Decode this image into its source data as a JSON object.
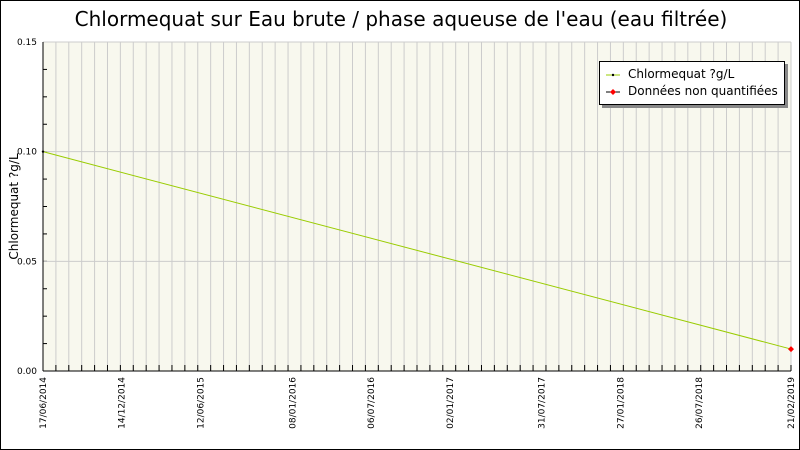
{
  "chart_data": {
    "type": "line",
    "title": "Chlormequat sur Eau brute / phase aqueuse de l'eau (eau filtrée)",
    "ylabel": "Chlormequat ?g/L",
    "xlabel": "",
    "ylim": [
      0,
      0.15
    ],
    "yticks": [
      "0.00",
      "0.05",
      "0.10",
      "0.15"
    ],
    "xticks": [
      "17/06/2014",
      "14/12/2014",
      "12/06/2015",
      "08/01/2016",
      "06/07/2016",
      "02/01/2017",
      "31/07/2017",
      "27/01/2018",
      "26/07/2018",
      "21/02/2019"
    ],
    "grid": true,
    "legend_position": "top-right",
    "series": [
      {
        "name": "Chlormequat ?g/L",
        "color": "#99cc00",
        "points": [
          {
            "x": "17/06/2014",
            "y": 0.1
          },
          {
            "x": "21/02/2019",
            "y": 0.01
          }
        ]
      },
      {
        "name": "Données non quantifiées",
        "color": "#ff0000",
        "points": [
          {
            "x": "21/02/2019",
            "y": 0.01
          }
        ]
      }
    ]
  }
}
